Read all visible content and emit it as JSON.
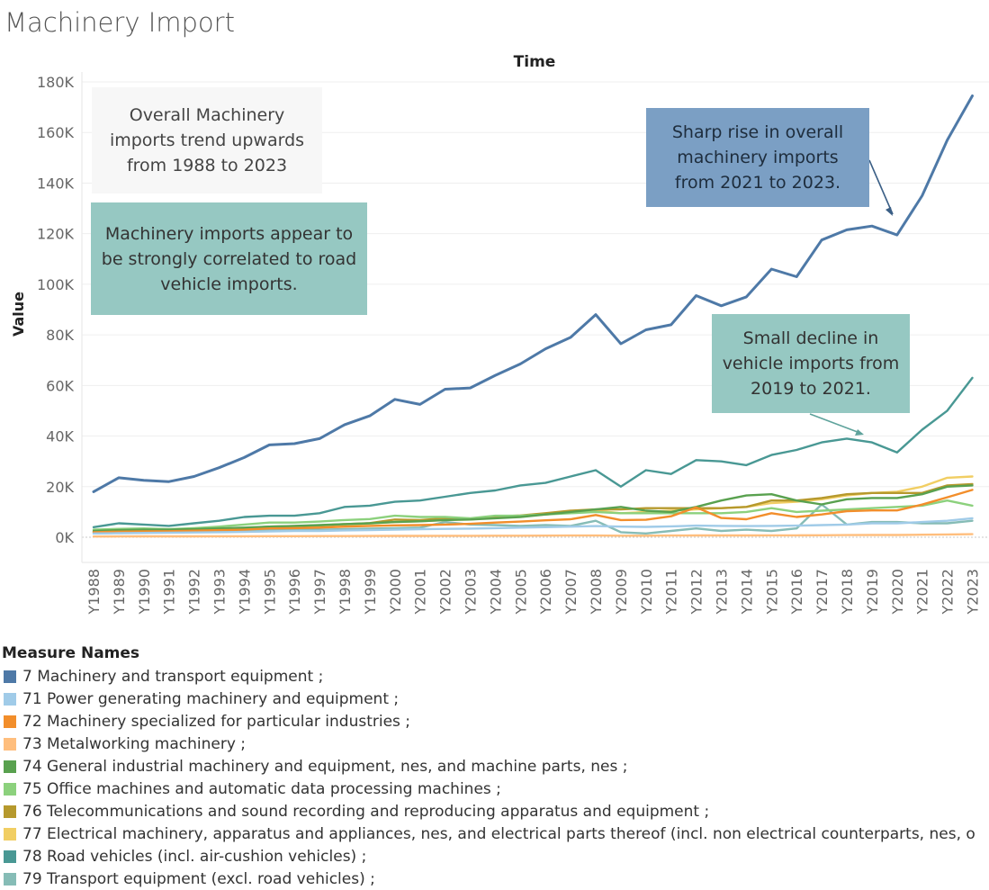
{
  "page": {
    "title": "Machinery Import"
  },
  "legend": {
    "title": "Measure Names"
  },
  "annotations": [
    {
      "text": "Overall Machinery imports trend upwards from 1988 to 2023"
    },
    {
      "text": "Machinery imports appear to be strongly correlated to road vehicle imports."
    },
    {
      "text": "Sharp rise in overall machinery imports from 2021 to 2023."
    },
    {
      "text": "Small decline in vehicle imports from 2019 to 2021."
    }
  ],
  "chart_data": {
    "type": "line",
    "title": "Time",
    "xlabel": "",
    "ylabel": "Value",
    "ylim": [
      0,
      180000
    ],
    "yticks": [
      0,
      20000,
      40000,
      60000,
      80000,
      100000,
      120000,
      140000,
      160000,
      180000
    ],
    "ytick_labels": [
      "0K",
      "20K",
      "40K",
      "60K",
      "80K",
      "100K",
      "120K",
      "140K",
      "160K",
      "180K"
    ],
    "grid": "horizontal",
    "legend_position": "bottom-left",
    "categories": [
      "Y1988",
      "Y1989",
      "Y1990",
      "Y1991",
      "Y1992",
      "Y1993",
      "Y1994",
      "Y1995",
      "Y1996",
      "Y1997",
      "Y1998",
      "Y1999",
      "Y2000",
      "Y2001",
      "Y2002",
      "Y2003",
      "Y2004",
      "Y2005",
      "Y2006",
      "Y2007",
      "Y2008",
      "Y2009",
      "Y2010",
      "Y2011",
      "Y2012",
      "Y2013",
      "Y2014",
      "Y2015",
      "Y2016",
      "Y2017",
      "Y2018",
      "Y2019",
      "Y2020",
      "Y2021",
      "Y2022",
      "Y2023"
    ],
    "series": [
      {
        "name": "7 Machinery and transport equipment ;",
        "color": "#4e79a7",
        "values": [
          18000,
          23500,
          22500,
          22000,
          24000,
          27500,
          31500,
          36500,
          37000,
          39000,
          44500,
          48000,
          54500,
          52500,
          58500,
          59000,
          64000,
          68500,
          74500,
          79000,
          88000,
          76500,
          82000,
          84000,
          95500,
          91500,
          95000,
          106000,
          103000,
          117500,
          121500,
          123000,
          119500,
          135000,
          157000,
          174500
        ]
      },
      {
        "name": "71 Power generating machinery and equipment ;",
        "color": "#a0cbe8",
        "values": [
          1500,
          1600,
          1700,
          1800,
          1900,
          2000,
          2100,
          2300,
          2500,
          2500,
          2700,
          2800,
          3000,
          3200,
          3300,
          3400,
          3600,
          3800,
          4000,
          4200,
          4400,
          4200,
          4100,
          4300,
          4600,
          4500,
          4400,
          4500,
          4600,
          4800,
          5000,
          5500,
          5500,
          6000,
          6500,
          7500
        ]
      },
      {
        "name": "72 Machinery specialized for particular industries ;",
        "color": "#f28e2b",
        "values": [
          2000,
          2200,
          2300,
          2400,
          2600,
          2800,
          3000,
          3500,
          3600,
          3800,
          4200,
          4500,
          4700,
          4800,
          5000,
          5300,
          5800,
          6200,
          6700,
          7100,
          8800,
          6800,
          6900,
          8300,
          11800,
          7600,
          7100,
          9500,
          8000,
          9000,
          10300,
          10600,
          10600,
          12900,
          15800,
          18700
        ]
      },
      {
        "name": "73 Metalworking machinery ;",
        "color": "#ffbe7d",
        "values": [
          300,
          320,
          340,
          350,
          360,
          380,
          400,
          420,
          440,
          460,
          480,
          500,
          520,
          540,
          560,
          580,
          600,
          620,
          640,
          660,
          680,
          600,
          620,
          660,
          700,
          700,
          720,
          740,
          760,
          800,
          850,
          900,
          900,
          1000,
          1100,
          1200
        ]
      },
      {
        "name": "74 General industrial machinery and equipment, nes, and machine parts, nes ;",
        "color": "#59a14f",
        "values": [
          2500,
          2800,
          3000,
          3000,
          3200,
          3500,
          3800,
          4200,
          4500,
          4800,
          5200,
          5500,
          6000,
          6300,
          6800,
          7000,
          7500,
          8000,
          9000,
          10000,
          11000,
          12000,
          10500,
          10000,
          12000,
          14500,
          16500,
          17000,
          14500,
          13000,
          15000,
          15500,
          15500,
          17000,
          20000,
          20500
        ]
      },
      {
        "name": "75 Office machines and automatic data processing machines ;",
        "color": "#8cd17d",
        "values": [
          3000,
          3300,
          3500,
          3200,
          3600,
          4200,
          5000,
          5800,
          5800,
          6200,
          6800,
          7200,
          8500,
          8000,
          8000,
          7500,
          8500,
          8500,
          9000,
          9500,
          10000,
          9500,
          9500,
          9500,
          9500,
          9500,
          10000,
          11500,
          10000,
          10500,
          11000,
          11500,
          12000,
          12500,
          14500,
          12500
        ]
      },
      {
        "name": "76 Telecommunications and sound recording and reproducing apparatus and equipment ;",
        "color": "#b6992d",
        "values": [
          2200,
          2400,
          2600,
          2700,
          2900,
          3200,
          3600,
          4200,
          4400,
          4700,
          5200,
          5600,
          7000,
          6800,
          7500,
          7200,
          8200,
          8600,
          9500,
          10500,
          11000,
          11000,
          11500,
          11500,
          11500,
          11500,
          12000,
          14500,
          14500,
          15500,
          17000,
          17500,
          17500,
          17500,
          20500,
          21000
        ]
      },
      {
        "name": "77 Electrical machinery, apparatus and appliances, nes, and electrical parts thereof (incl. non electrical counterparts, nes, o",
        "color": "#f1ce63",
        "values": [
          2000,
          2300,
          2500,
          2600,
          2800,
          3100,
          3500,
          4000,
          4300,
          4600,
          5000,
          5400,
          6000,
          6300,
          6800,
          7000,
          7800,
          8300,
          9000,
          9800,
          10500,
          9500,
          10000,
          10500,
          11000,
          11500,
          12000,
          13500,
          14000,
          15000,
          16500,
          17500,
          18000,
          20000,
          23500,
          24000
        ]
      },
      {
        "name": "78 Road vehicles (incl. air-cushion vehicles) ;",
        "color": "#499894",
        "values": [
          4000,
          5500,
          5000,
          4500,
          5500,
          6500,
          8000,
          8500,
          8500,
          9500,
          12000,
          12500,
          14000,
          14500,
          16000,
          17500,
          18500,
          20500,
          21500,
          24000,
          26500,
          20000,
          26500,
          25000,
          30500,
          30000,
          28500,
          32500,
          34500,
          37500,
          39000,
          37500,
          33500,
          42500,
          50000,
          63000
        ]
      },
      {
        "name": "79 Transport equipment (excl. road vehicles) ;",
        "color": "#86bcb6",
        "values": [
          1500,
          1700,
          1800,
          2000,
          2100,
          2300,
          2500,
          2800,
          3000,
          3000,
          3200,
          3400,
          3600,
          3800,
          6000,
          5000,
          4800,
          4500,
          4800,
          4500,
          6500,
          2000,
          1500,
          2500,
          3500,
          2500,
          3000,
          2500,
          3500,
          13000,
          5000,
          6000,
          6000,
          5500,
          5500,
          6500
        ]
      }
    ]
  }
}
